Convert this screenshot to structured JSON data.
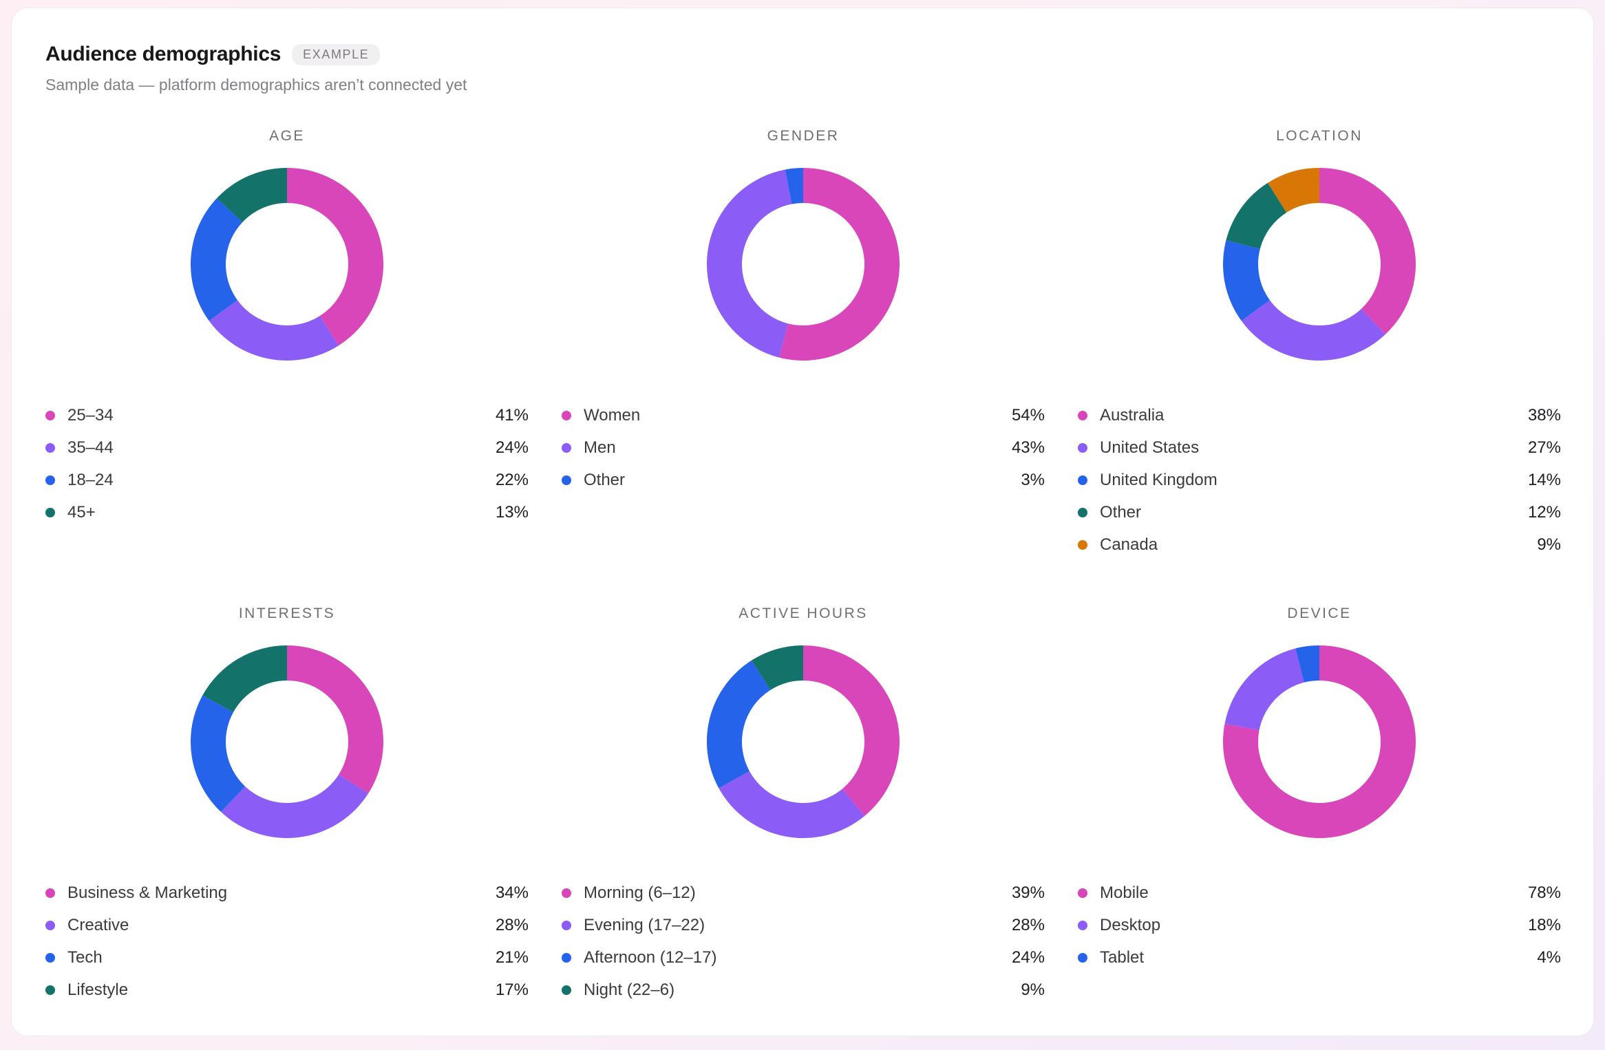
{
  "header": {
    "title": "Audience demographics",
    "badge": "EXAMPLE",
    "subtitle": "Sample data — platform demographics aren’t connected yet"
  },
  "colors": {
    "pink": "#d946b9",
    "purple": "#8b5cf6",
    "blue": "#2563eb",
    "teal": "#13736a",
    "orange": "#d97706"
  },
  "chart_data": [
    {
      "type": "pie",
      "title": "AGE",
      "categories": [
        "25–34",
        "35–44",
        "18–24",
        "45+"
      ],
      "values": [
        41,
        24,
        22,
        13
      ],
      "value_labels": [
        "41%",
        "24%",
        "22%",
        "13%"
      ],
      "colors": [
        "#d946b9",
        "#8b5cf6",
        "#2563eb",
        "#13736a"
      ]
    },
    {
      "type": "pie",
      "title": "GENDER",
      "categories": [
        "Women",
        "Men",
        "Other"
      ],
      "values": [
        54,
        43,
        3
      ],
      "value_labels": [
        "54%",
        "43%",
        "3%"
      ],
      "colors": [
        "#d946b9",
        "#8b5cf6",
        "#2563eb"
      ]
    },
    {
      "type": "pie",
      "title": "LOCATION",
      "categories": [
        "Australia",
        "United States",
        "United Kingdom",
        "Other",
        "Canada"
      ],
      "values": [
        38,
        27,
        14,
        12,
        9
      ],
      "value_labels": [
        "38%",
        "27%",
        "14%",
        "12%",
        "9%"
      ],
      "colors": [
        "#d946b9",
        "#8b5cf6",
        "#2563eb",
        "#13736a",
        "#d97706"
      ]
    },
    {
      "type": "pie",
      "title": "INTERESTS",
      "categories": [
        "Business & Marketing",
        "Creative",
        "Tech",
        "Lifestyle"
      ],
      "values": [
        34,
        28,
        21,
        17
      ],
      "value_labels": [
        "34%",
        "28%",
        "21%",
        "17%"
      ],
      "colors": [
        "#d946b9",
        "#8b5cf6",
        "#2563eb",
        "#13736a"
      ]
    },
    {
      "type": "pie",
      "title": "ACTIVE HOURS",
      "categories": [
        "Morning (6–12)",
        "Evening (17–22)",
        "Afternoon (12–17)",
        "Night (22–6)"
      ],
      "values": [
        39,
        28,
        24,
        9
      ],
      "value_labels": [
        "39%",
        "28%",
        "24%",
        "9%"
      ],
      "colors": [
        "#d946b9",
        "#8b5cf6",
        "#2563eb",
        "#13736a"
      ]
    },
    {
      "type": "pie",
      "title": "DEVICE",
      "categories": [
        "Mobile",
        "Desktop",
        "Tablet"
      ],
      "values": [
        78,
        18,
        4
      ],
      "value_labels": [
        "78%",
        "18%",
        "4%"
      ],
      "colors": [
        "#d946b9",
        "#8b5cf6",
        "#2563eb"
      ]
    }
  ]
}
